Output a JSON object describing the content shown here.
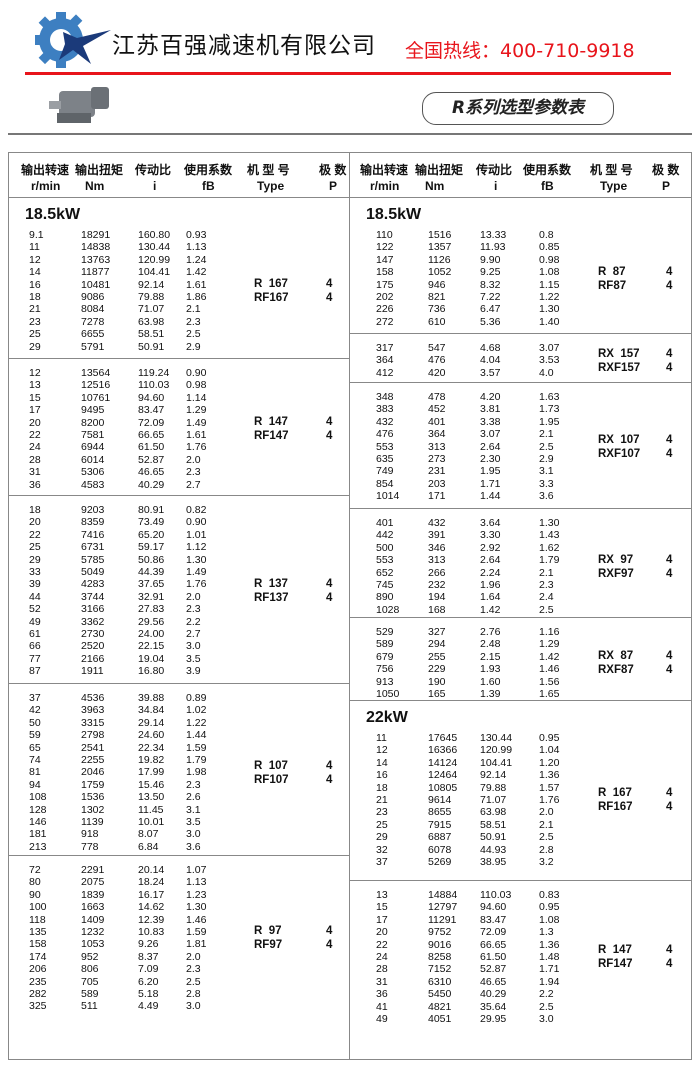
{
  "header": {
    "company": "江苏百强减速机有限公司",
    "hotline": "全国热线：400-710-9918",
    "series_title": "R系列选型参数表",
    "colors": {
      "accent": "#e8141b",
      "logo_blue": "#3d7fc1",
      "logo_navy": "#1b3a7a"
    }
  },
  "table_headers": [
    {
      "cn": "输出转速",
      "unit": "r/min"
    },
    {
      "cn": "输出扭矩",
      "unit": "Nm"
    },
    {
      "cn": "传动比",
      "unit": "i"
    },
    {
      "cn": "使用系数",
      "unit": "fB"
    },
    {
      "cn": "机 型 号",
      "unit": "Type"
    },
    {
      "cn": "极 数",
      "unit": "P"
    }
  ],
  "left_groups": [
    {
      "power": "18.5kW",
      "types": [
        "R  167",
        "RF167"
      ],
      "poles": [
        "4",
        "4"
      ],
      "rows": [
        [
          "9.1",
          "18291",
          "160.80",
          "0.93"
        ],
        [
          "11",
          "14838",
          "130.44",
          "1.13"
        ],
        [
          "12",
          "13763",
          "120.99",
          "1.24"
        ],
        [
          "14",
          "11877",
          "104.41",
          "1.42"
        ],
        [
          "16",
          "10481",
          "92.14",
          "1.61"
        ],
        [
          "18",
          "9086",
          "79.88",
          "1.86"
        ],
        [
          "21",
          "8084",
          "71.07",
          "2.1"
        ],
        [
          "23",
          "7278",
          "63.98",
          "2.3"
        ],
        [
          "25",
          "6655",
          "58.51",
          "2.5"
        ],
        [
          "29",
          "5791",
          "50.91",
          "2.9"
        ]
      ]
    },
    {
      "types": [
        "R  147",
        "RF147"
      ],
      "poles": [
        "4",
        "4"
      ],
      "rows": [
        [
          "12",
          "13564",
          "119.24",
          "0.90"
        ],
        [
          "13",
          "12516",
          "110.03",
          "0.98"
        ],
        [
          "15",
          "10761",
          "94.60",
          "1.14"
        ],
        [
          "17",
          "9495",
          "83.47",
          "1.29"
        ],
        [
          "20",
          "8200",
          "72.09",
          "1.49"
        ],
        [
          "22",
          "7581",
          "66.65",
          "1.61"
        ],
        [
          "24",
          "6944",
          "61.50",
          "1.76"
        ],
        [
          "28",
          "6014",
          "52.87",
          "2.0"
        ],
        [
          "31",
          "5306",
          "46.65",
          "2.3"
        ],
        [
          "36",
          "4583",
          "40.29",
          "2.7"
        ]
      ]
    },
    {
      "types": [
        "R  137",
        "RF137"
      ],
      "poles": [
        "4",
        "4"
      ],
      "rows": [
        [
          "18",
          "9203",
          "80.91",
          "0.82"
        ],
        [
          "20",
          "8359",
          "73.49",
          "0.90"
        ],
        [
          "22",
          "7416",
          "65.20",
          "1.01"
        ],
        [
          "25",
          "6731",
          "59.17",
          "1.12"
        ],
        [
          "29",
          "5785",
          "50.86",
          "1.30"
        ],
        [
          "33",
          "5049",
          "44.39",
          "1.49"
        ],
        [
          "39",
          "4283",
          "37.65",
          "1.76"
        ],
        [
          "44",
          "3744",
          "32.91",
          "2.0"
        ],
        [
          "52",
          "3166",
          "27.83",
          "2.3"
        ],
        [
          "49",
          "3362",
          "29.56",
          "2.2"
        ],
        [
          "61",
          "2730",
          "24.00",
          "2.7"
        ],
        [
          "66",
          "2520",
          "22.15",
          "3.0"
        ],
        [
          "77",
          "2166",
          "19.04",
          "3.5"
        ],
        [
          "87",
          "1911",
          "16.80",
          "3.9"
        ]
      ]
    },
    {
      "types": [
        "R  107",
        "RF107"
      ],
      "poles": [
        "4",
        "4"
      ],
      "rows": [
        [
          "37",
          "4536",
          "39.88",
          "0.89"
        ],
        [
          "42",
          "3963",
          "34.84",
          "1.02"
        ],
        [
          "50",
          "3315",
          "29.14",
          "1.22"
        ],
        [
          "59",
          "2798",
          "24.60",
          "1.44"
        ],
        [
          "65",
          "2541",
          "22.34",
          "1.59"
        ],
        [
          "74",
          "2255",
          "19.82",
          "1.79"
        ],
        [
          "81",
          "2046",
          "17.99",
          "1.98"
        ],
        [
          "94",
          "1759",
          "15.46",
          "2.3"
        ],
        [
          "108",
          "1536",
          "13.50",
          "2.6"
        ],
        [
          "128",
          "1302",
          "11.45",
          "3.1"
        ],
        [
          "146",
          "1139",
          "10.01",
          "3.5"
        ],
        [
          "181",
          "918",
          "8.07",
          "3.0"
        ],
        [
          "213",
          "778",
          "6.84",
          "3.6"
        ]
      ]
    },
    {
      "types": [
        "R  97",
        "RF97"
      ],
      "poles": [
        "4",
        "4"
      ],
      "rows": [
        [
          "72",
          "2291",
          "20.14",
          "1.07"
        ],
        [
          "80",
          "2075",
          "18.24",
          "1.13"
        ],
        [
          "90",
          "1839",
          "16.17",
          "1.23"
        ],
        [
          "100",
          "1663",
          "14.62",
          "1.30"
        ],
        [
          "118",
          "1409",
          "12.39",
          "1.46"
        ],
        [
          "135",
          "1232",
          "10.83",
          "1.59"
        ],
        [
          "158",
          "1053",
          "9.26",
          "1.81"
        ],
        [
          "174",
          "952",
          "8.37",
          "2.0"
        ],
        [
          "206",
          "806",
          "7.09",
          "2.3"
        ],
        [
          "235",
          "705",
          "6.20",
          "2.5"
        ],
        [
          "282",
          "589",
          "5.18",
          "2.8"
        ],
        [
          "325",
          "511",
          "4.49",
          "3.0"
        ]
      ]
    }
  ],
  "right_groups": [
    {
      "power": "18.5kW",
      "types": [
        "R  87",
        "RF87"
      ],
      "poles": [
        "4",
        "4"
      ],
      "rows": [
        [
          "110",
          "1516",
          "13.33",
          "0.8"
        ],
        [
          "122",
          "1357",
          "11.93",
          "0.85"
        ],
        [
          "147",
          "1126",
          "9.90",
          "0.98"
        ],
        [
          "158",
          "1052",
          "9.25",
          "1.08"
        ],
        [
          "175",
          "946",
          "8.32",
          "1.15"
        ],
        [
          "202",
          "821",
          "7.22",
          "1.22"
        ],
        [
          "226",
          "736",
          "6.47",
          "1.30"
        ],
        [
          "272",
          "610",
          "5.36",
          "1.40"
        ]
      ]
    },
    {
      "types": [
        "RX  157",
        "RXF157"
      ],
      "poles": [
        "4",
        "4"
      ],
      "rows": [
        [
          "317",
          "547",
          "4.68",
          "3.07"
        ],
        [
          "364",
          "476",
          "4.04",
          "3.53"
        ],
        [
          "412",
          "420",
          "3.57",
          "4.0"
        ]
      ]
    },
    {
      "types": [
        "RX  107",
        "RXF107"
      ],
      "poles": [
        "4",
        "4"
      ],
      "rows": [
        [
          "348",
          "478",
          "4.20",
          "1.63"
        ],
        [
          "383",
          "452",
          "3.81",
          "1.73"
        ],
        [
          "432",
          "401",
          "3.38",
          "1.95"
        ],
        [
          "476",
          "364",
          "3.07",
          "2.1"
        ],
        [
          "553",
          "313",
          "2.64",
          "2.5"
        ],
        [
          "635",
          "273",
          "2.30",
          "2.9"
        ],
        [
          "749",
          "231",
          "1.95",
          "3.1"
        ],
        [
          "854",
          "203",
          "1.71",
          "3.3"
        ],
        [
          "1014",
          "171",
          "1.44",
          "3.6"
        ]
      ]
    },
    {
      "types": [
        "RX  97",
        "RXF97"
      ],
      "poles": [
        "4",
        "4"
      ],
      "rows": [
        [
          "401",
          "432",
          "3.64",
          "1.30"
        ],
        [
          "442",
          "391",
          "3.30",
          "1.43"
        ],
        [
          "500",
          "346",
          "2.92",
          "1.62"
        ],
        [
          "553",
          "313",
          "2.64",
          "1.79"
        ],
        [
          "652",
          "266",
          "2.24",
          "2.1"
        ],
        [
          "745",
          "232",
          "1.96",
          "2.3"
        ],
        [
          "890",
          "194",
          "1.64",
          "2.4"
        ],
        [
          "1028",
          "168",
          "1.42",
          "2.5"
        ]
      ]
    },
    {
      "types": [
        "RX  87",
        "RXF87"
      ],
      "poles": [
        "4",
        "4"
      ],
      "rows": [
        [
          "529",
          "327",
          "2.76",
          "1.16"
        ],
        [
          "589",
          "294",
          "2.48",
          "1.29"
        ],
        [
          "679",
          "255",
          "2.15",
          "1.42"
        ],
        [
          "756",
          "229",
          "1.93",
          "1.46"
        ],
        [
          "913",
          "190",
          "1.60",
          "1.56"
        ],
        [
          "1050",
          "165",
          "1.39",
          "1.65"
        ]
      ]
    },
    {
      "power": "22kW",
      "types": [
        "R  167",
        "RF167"
      ],
      "poles": [
        "4",
        "4"
      ],
      "rows": [
        [
          "11",
          "17645",
          "130.44",
          "0.95"
        ],
        [
          "12",
          "16366",
          "120.99",
          "1.04"
        ],
        [
          "14",
          "14124",
          "104.41",
          "1.20"
        ],
        [
          "16",
          "12464",
          "92.14",
          "1.36"
        ],
        [
          "18",
          "10805",
          "79.88",
          "1.57"
        ],
        [
          "21",
          "9614",
          "71.07",
          "1.76"
        ],
        [
          "23",
          "8655",
          "63.98",
          "2.0"
        ],
        [
          "25",
          "7915",
          "58.51",
          "2.1"
        ],
        [
          "29",
          "6887",
          "50.91",
          "2.5"
        ],
        [
          "32",
          "6078",
          "44.93",
          "2.8"
        ],
        [
          "37",
          "5269",
          "38.95",
          "3.2"
        ]
      ]
    },
    {
      "types": [
        "R  147",
        "RF147"
      ],
      "poles": [
        "4",
        "4"
      ],
      "rows": [
        [
          "13",
          "14884",
          "110.03",
          "0.83"
        ],
        [
          "15",
          "12797",
          "94.60",
          "0.95"
        ],
        [
          "17",
          "11291",
          "83.47",
          "1.08"
        ],
        [
          "20",
          "9752",
          "72.09",
          "1.3"
        ],
        [
          "22",
          "9016",
          "66.65",
          "1.36"
        ],
        [
          "24",
          "8258",
          "61.50",
          "1.48"
        ],
        [
          "28",
          "7152",
          "52.87",
          "1.71"
        ],
        [
          "31",
          "6310",
          "46.65",
          "1.94"
        ],
        [
          "36",
          "5450",
          "40.29",
          "2.2"
        ],
        [
          "41",
          "4821",
          "35.64",
          "2.5"
        ],
        [
          "49",
          "4051",
          "29.95",
          "3.0"
        ]
      ]
    }
  ]
}
